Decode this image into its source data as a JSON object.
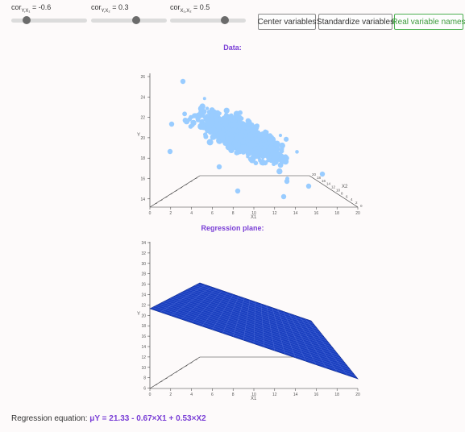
{
  "sliders": [
    {
      "label_prefix": "cor",
      "sub": "Y,X₁",
      "value_text": " = -0.6",
      "fraction": 0.2
    },
    {
      "label_prefix": "cor",
      "sub": "Y,X₂",
      "value_text": " = 0.3",
      "fraction": 0.6
    },
    {
      "label_prefix": "cor",
      "sub": "X₁,X₂",
      "value_text": " = 0.5",
      "fraction": 0.72
    }
  ],
  "buttons": {
    "center": "Center variables",
    "standardize": "Standardize variables",
    "real_names": "Real variable names"
  },
  "accent_color": "#7a3fd6",
  "active_button_color": "#4caf50",
  "data_panel": {
    "title": "Data:",
    "y_label": "Y",
    "x1_label": "X1",
    "x2_label": "X2",
    "y_ticks": [
      "26",
      "24",
      "22",
      "20",
      "18",
      "16",
      "14"
    ],
    "x1_ticks": [
      "0",
      "2",
      "4",
      "6",
      "8",
      "10",
      "12",
      "14",
      "16",
      "18",
      "20"
    ],
    "x2_ticks": [
      "20",
      "18",
      "16",
      "14",
      "12",
      "10",
      "8",
      "6",
      "4",
      "2",
      "0"
    ],
    "point_color": "#99ccff"
  },
  "regression_panel": {
    "title": "Regression plane:",
    "y_label": "Y",
    "x1_label": "X1",
    "y_ticks": [
      "34",
      "32",
      "30",
      "28",
      "26",
      "24",
      "22",
      "20",
      "18",
      "16",
      "14",
      "12",
      "10",
      "8",
      "6"
    ],
    "x1_ticks": [
      "0",
      "2",
      "4",
      "6",
      "8",
      "10",
      "12",
      "14",
      "16",
      "18",
      "20"
    ],
    "plane_color": "#1a3fbf"
  },
  "equation": {
    "label": "Regression equation: ",
    "formula": "μY = 21.33 - 0.67×X1 + 0.53×X2"
  }
}
